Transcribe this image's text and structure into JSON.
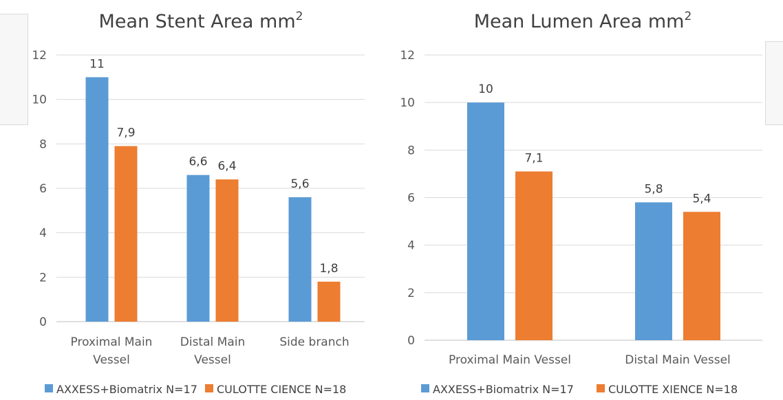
{
  "chart_data": [
    {
      "type": "bar",
      "title": "Mean Stent Area mm",
      "title_superscript": "2",
      "categories": [
        [
          "Proximal Main",
          "Vessel"
        ],
        [
          "Distal Main",
          "Vessel"
        ],
        [
          "Side branch"
        ]
      ],
      "series": [
        {
          "name": "AXXESS+Biomatrix N=17",
          "color": "#5b9bd5",
          "values": [
            11,
            6.6,
            5.6
          ],
          "labels": [
            "11",
            "6,6",
            "5,6"
          ]
        },
        {
          "name": "CULOTTE CIENCE N=18",
          "color": "#ed7d31",
          "values": [
            7.9,
            6.4,
            1.8
          ],
          "labels": [
            "7,9",
            "6,4",
            "1,8"
          ]
        }
      ],
      "yticks": [
        "0",
        "2",
        "4",
        "6",
        "8",
        "10",
        "12"
      ],
      "ylim": [
        0,
        12
      ],
      "grid": true,
      "legend_position": "bottom"
    },
    {
      "type": "bar",
      "title": "Mean Lumen Area mm",
      "title_superscript": "2",
      "categories": [
        [
          "Proximal Main Vessel"
        ],
        [
          "Distal Main Vessel"
        ]
      ],
      "series": [
        {
          "name": "AXXESS+Biomatrix N=17",
          "color": "#5b9bd5",
          "values": [
            10,
            5.8
          ],
          "labels": [
            "10",
            "5,8"
          ]
        },
        {
          "name": "CULOTTE XIENCE N=18",
          "color": "#ed7d31",
          "values": [
            7.1,
            5.4
          ],
          "labels": [
            "7,1",
            "5,4"
          ]
        }
      ],
      "yticks": [
        "0",
        "2",
        "4",
        "6",
        "8",
        "10",
        "12"
      ],
      "ylim": [
        0,
        12
      ],
      "grid": true,
      "legend_position": "bottom"
    }
  ]
}
